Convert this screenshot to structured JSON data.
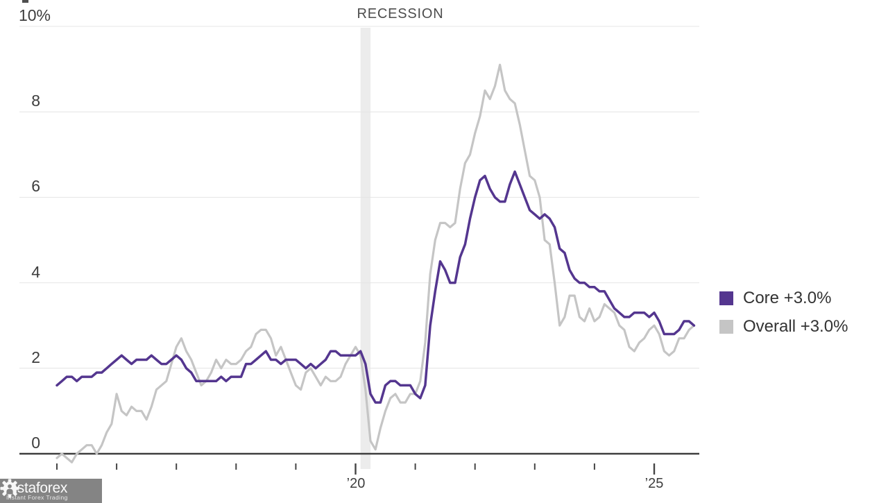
{
  "chart": {
    "recession_label": "RECESSION"
  },
  "watermark": {
    "brand": "instaforex",
    "tagline": "Instant Forex Trading"
  },
  "chart_data": {
    "type": "line",
    "title": "",
    "xlabel": "",
    "ylabel": "",
    "x_unit": "month",
    "x_start": "2015-01",
    "x_end": "2025-09",
    "ylim": [
      -0.5,
      10
    ],
    "yticks": [
      10,
      8,
      6,
      4,
      2,
      0
    ],
    "ytick_labels": [
      "10%",
      "8",
      "6",
      "4",
      "2",
      "0"
    ],
    "xtick_years": [
      2015,
      2016,
      2017,
      2018,
      2019,
      2020,
      2021,
      2022,
      2023,
      2024,
      2025
    ],
    "xtick_labels": {
      "2020": "’20",
      "2025": "’25"
    },
    "grid": true,
    "grid_color": "#e4e4e4",
    "zero_line_color": "#3e3e3e",
    "tick_color": "#454545",
    "band_color": "#ececec",
    "legend_position": "right",
    "recession_band": {
      "label": "RECESSION",
      "from": "2020-02",
      "to": "2020-04"
    },
    "series": [
      {
        "name": "Core +3.0%",
        "color": "#54368f",
        "values": [
          1.6,
          1.7,
          1.8,
          1.8,
          1.7,
          1.8,
          1.8,
          1.8,
          1.9,
          1.9,
          2.0,
          2.1,
          2.2,
          2.3,
          2.2,
          2.1,
          2.2,
          2.2,
          2.2,
          2.3,
          2.2,
          2.1,
          2.1,
          2.2,
          2.3,
          2.2,
          2.0,
          1.9,
          1.7,
          1.7,
          1.7,
          1.7,
          1.7,
          1.8,
          1.7,
          1.8,
          1.8,
          1.8,
          2.1,
          2.1,
          2.2,
          2.3,
          2.4,
          2.2,
          2.2,
          2.1,
          2.2,
          2.2,
          2.2,
          2.1,
          2.0,
          2.1,
          2.0,
          2.1,
          2.2,
          2.4,
          2.4,
          2.3,
          2.3,
          2.3,
          2.3,
          2.4,
          2.1,
          1.4,
          1.2,
          1.2,
          1.6,
          1.7,
          1.7,
          1.6,
          1.6,
          1.6,
          1.4,
          1.3,
          1.6,
          3.0,
          3.8,
          4.5,
          4.3,
          4.0,
          4.0,
          4.6,
          4.9,
          5.5,
          6.0,
          6.4,
          6.5,
          6.2,
          6.0,
          5.9,
          5.9,
          6.3,
          6.6,
          6.3,
          6.0,
          5.7,
          5.6,
          5.5,
          5.6,
          5.5,
          5.3,
          4.8,
          4.7,
          4.3,
          4.1,
          4.0,
          4.0,
          3.9,
          3.9,
          3.8,
          3.8,
          3.6,
          3.4,
          3.3,
          3.2,
          3.2,
          3.3,
          3.3,
          3.3,
          3.2,
          3.3,
          3.1,
          2.8,
          2.8,
          2.8,
          2.9,
          3.1,
          3.1,
          3.0
        ]
      },
      {
        "name": "Overall +3.0%",
        "color": "#c5c5c5",
        "values": [
          -0.1,
          0.0,
          -0.1,
          -0.2,
          0.0,
          0.1,
          0.2,
          0.2,
          0.0,
          0.2,
          0.5,
          0.7,
          1.4,
          1.0,
          0.9,
          1.1,
          1.0,
          1.0,
          0.8,
          1.1,
          1.5,
          1.6,
          1.7,
          2.1,
          2.5,
          2.7,
          2.4,
          2.2,
          1.9,
          1.6,
          1.7,
          1.9,
          2.2,
          2.0,
          2.2,
          2.1,
          2.1,
          2.2,
          2.4,
          2.5,
          2.8,
          2.9,
          2.9,
          2.7,
          2.3,
          2.5,
          2.2,
          1.9,
          1.6,
          1.5,
          1.9,
          2.0,
          1.8,
          1.6,
          1.8,
          1.7,
          1.7,
          1.8,
          2.1,
          2.3,
          2.5,
          2.3,
          1.5,
          0.3,
          0.1,
          0.6,
          1.0,
          1.3,
          1.4,
          1.2,
          1.2,
          1.4,
          1.4,
          1.7,
          2.6,
          4.2,
          5.0,
          5.4,
          5.4,
          5.3,
          5.4,
          6.2,
          6.8,
          7.0,
          7.5,
          7.9,
          8.5,
          8.3,
          8.6,
          9.1,
          8.5,
          8.3,
          8.2,
          7.7,
          7.1,
          6.5,
          6.4,
          6.0,
          5.0,
          4.9,
          4.0,
          3.0,
          3.2,
          3.7,
          3.7,
          3.2,
          3.1,
          3.4,
          3.1,
          3.2,
          3.5,
          3.4,
          3.3,
          3.0,
          2.9,
          2.5,
          2.4,
          2.6,
          2.7,
          2.9,
          3.0,
          2.8,
          2.4,
          2.3,
          2.4,
          2.7,
          2.7,
          2.9,
          3.0
        ]
      }
    ]
  }
}
